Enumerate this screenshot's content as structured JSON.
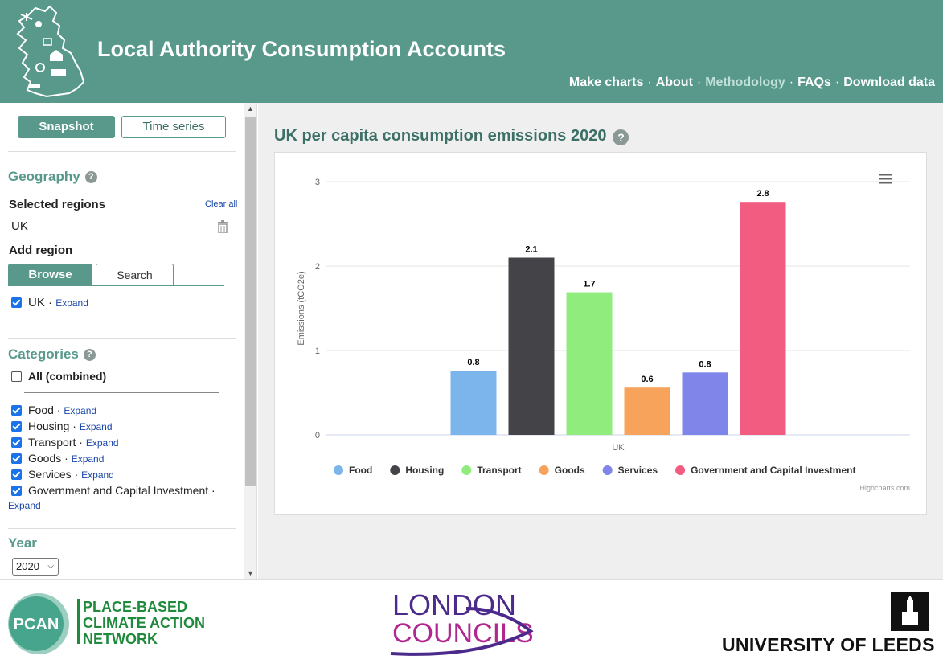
{
  "header": {
    "title": "Local Authority Consumption Accounts",
    "nav": [
      {
        "label": "Make charts",
        "dim": false
      },
      {
        "label": "About",
        "dim": false
      },
      {
        "label": "Methodology",
        "dim": true
      },
      {
        "label": "FAQs",
        "dim": false
      },
      {
        "label": "Download data",
        "dim": false
      }
    ]
  },
  "sidebar": {
    "mode_tabs": {
      "snapshot": "Snapshot",
      "time_series": "Time series",
      "active": "snapshot"
    },
    "geography": {
      "title": "Geography",
      "help": "?",
      "selected_label": "Selected regions",
      "clear_all": "Clear all",
      "selected_regions": [
        "UK"
      ],
      "add_label": "Add region",
      "browse_tabs": {
        "browse": "Browse",
        "search": "Search"
      },
      "tree": [
        {
          "label": "UK",
          "checked": true,
          "expand": "Expand"
        }
      ]
    },
    "categories": {
      "title": "Categories",
      "help": "?",
      "all_label": "All (combined)",
      "all_checked": false,
      "items": [
        {
          "label": "Food",
          "checked": true,
          "expand": "Expand"
        },
        {
          "label": "Housing",
          "checked": true,
          "expand": "Expand"
        },
        {
          "label": "Transport",
          "checked": true,
          "expand": "Expand"
        },
        {
          "label": "Goods",
          "checked": true,
          "expand": "Expand"
        },
        {
          "label": "Services",
          "checked": true,
          "expand": "Expand"
        },
        {
          "label": "Government and Capital Investment",
          "checked": true,
          "expand": "Expand"
        }
      ]
    },
    "year": {
      "title": "Year",
      "selected": "2020"
    }
  },
  "main": {
    "chart_title": "UK per capita consumption emissions 2020",
    "help": "?",
    "credits": "Highcharts.com"
  },
  "chart_data": {
    "type": "bar",
    "categories": [
      "UK"
    ],
    "ylabel": "Emissions (tCO2e)",
    "xlabel": "",
    "ylim": [
      0,
      3
    ],
    "yticks": [
      0,
      1,
      2,
      3
    ],
    "grid": true,
    "legend_position": "bottom",
    "series": [
      {
        "name": "Food",
        "values": [
          0.76
        ],
        "label": "0.8",
        "color": "#7cb5ec"
      },
      {
        "name": "Housing",
        "values": [
          2.1
        ],
        "label": "2.1",
        "color": "#434348"
      },
      {
        "name": "Transport",
        "values": [
          1.69
        ],
        "label": "1.7",
        "color": "#90ed7d"
      },
      {
        "name": "Goods",
        "values": [
          0.56
        ],
        "label": "0.6",
        "color": "#f7a35c"
      },
      {
        "name": "Services",
        "values": [
          0.74
        ],
        "label": "0.8",
        "color": "#8085e9"
      },
      {
        "name": "Government and Capital Investment",
        "values": [
          2.76
        ],
        "label": "2.8",
        "color": "#f15c80"
      }
    ]
  },
  "footer": {
    "pcan_badge": "PCAN",
    "pcan_lines": [
      "PLACE-BASED",
      "CLIMATE ACTION",
      "NETWORK"
    ],
    "london_lines": [
      "LONDON",
      "COUNCILS"
    ],
    "leeds": "UNIVERSITY OF LEEDS"
  },
  "colors": {
    "brand": "#58998c",
    "brand_dark": "#3c6f65",
    "link": "#1a47a8",
    "checkbox": "#1a73e8"
  }
}
